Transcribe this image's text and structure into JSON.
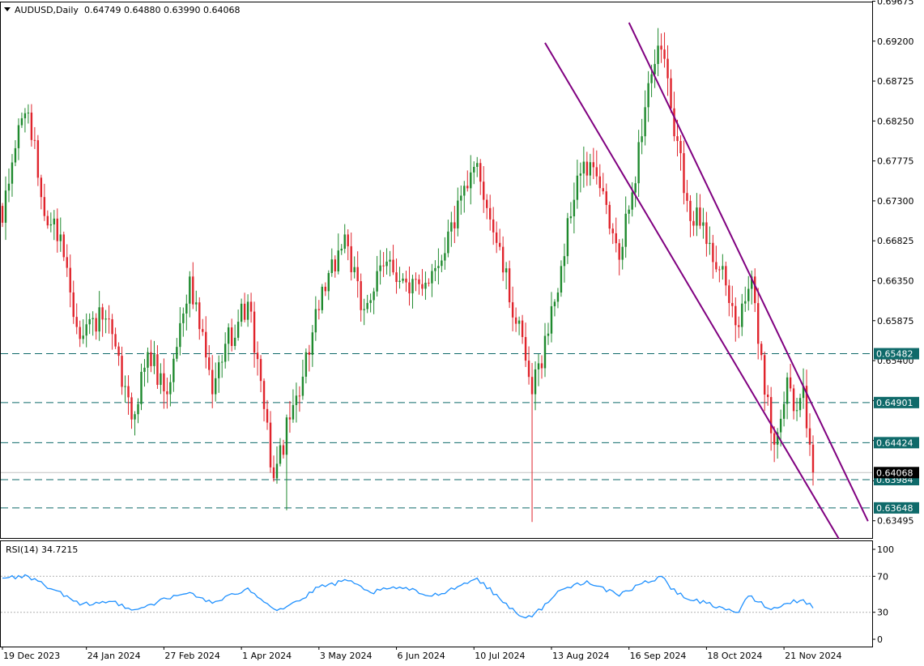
{
  "header": {
    "symbol": "AUDUSD,Daily",
    "ohlc": "0.64749 0.64880 0.63990 0.64068"
  },
  "rsi_header": "RSI(14) 34.7215",
  "colors": {
    "bull": "#1f8a2e",
    "bear": "#e0242c",
    "channel": "#800080",
    "level": "#0f6a6a",
    "rsi": "#1e90ff",
    "current_price_bg": "#000000"
  },
  "chart_data": [
    {
      "type": "candlestick",
      "symbol": "AUDUSD",
      "timeframe": "Daily",
      "y_ticks": [
        "0.69675",
        "0.69200",
        "0.68725",
        "0.68250",
        "0.67775",
        "0.67300",
        "0.66825",
        "0.66350",
        "0.65875",
        "0.65400",
        "0.64925",
        "0.64450",
        "0.63970",
        "0.63495"
      ],
      "x_ticks": [
        "19 Dec 2023",
        "24 Jan 2024",
        "27 Feb 2024",
        "1 Apr 2024",
        "3 May 2024",
        "6 Jun 2024",
        "10 Jul 2024",
        "13 Aug 2024",
        "16 Sep 2024",
        "18 Oct 2024",
        "21 Nov 2024"
      ],
      "ylim": [
        0.6329,
        0.6967
      ],
      "current_price": "0.64068",
      "levels": [
        "0.65482",
        "0.64901",
        "0.64424",
        "0.63984",
        "0.63648"
      ],
      "channel": {
        "upper": [
          {
            "date": "16 Sep 2024",
            "value": 0.6942
          },
          {
            "date": "29 Dec 2024",
            "value": 0.6349
          }
        ],
        "lower": [
          {
            "date": "9 Aug 2024",
            "value": 0.6918
          },
          {
            "date": "16 Dec 2024",
            "value": 0.6328
          }
        ]
      },
      "anchors": [
        {
          "date": "19 Dec 2023",
          "value": 0.6704
        },
        {
          "date": "26 Dec 2023",
          "value": 0.682
        },
        {
          "date": "29 Dec 2023",
          "value": 0.6835
        },
        {
          "date": "5 Jan 2024",
          "value": 0.6712
        },
        {
          "date": "12 Jan 2024",
          "value": 0.669
        },
        {
          "date": "19 Jan 2024",
          "value": 0.658
        },
        {
          "date": "1 Feb 2024",
          "value": 0.659
        },
        {
          "date": "13 Feb 2024",
          "value": 0.647
        },
        {
          "date": "20 Feb 2024",
          "value": 0.655
        },
        {
          "date": "28 Feb 2024",
          "value": 0.65
        },
        {
          "date": "8 Mar 2024",
          "value": 0.664
        },
        {
          "date": "19 Mar 2024",
          "value": 0.65
        },
        {
          "date": "25 Mar 2024",
          "value": 0.656
        },
        {
          "date": "3 Apr 2024",
          "value": 0.661
        },
        {
          "date": "15 Apr 2024",
          "value": 0.64
        },
        {
          "date": "22 Apr 2024",
          "value": 0.647
        },
        {
          "date": "3 May 2024",
          "value": 0.66
        },
        {
          "date": "15 May 2024",
          "value": 0.669
        },
        {
          "date": "22 May 2024",
          "value": 0.66
        },
        {
          "date": "4 Jun 2024",
          "value": 0.666
        },
        {
          "date": "12 Jun 2024",
          "value": 0.662
        },
        {
          "date": "24 Jun 2024",
          "value": 0.665
        },
        {
          "date": "8 Jul 2024",
          "value": 0.6745
        },
        {
          "date": "11 Jul 2024",
          "value": 0.6775
        },
        {
          "date": "19 Jul 2024",
          "value": 0.668
        },
        {
          "date": "1 Aug 2024",
          "value": 0.654
        },
        {
          "date": "5 Aug 2024",
          "value": 0.65
        },
        {
          "date": "14 Aug 2024",
          "value": 0.661
        },
        {
          "date": "23 Aug 2024",
          "value": 0.676
        },
        {
          "date": "30 Aug 2024",
          "value": 0.677
        },
        {
          "date": "11 Sep 2024",
          "value": 0.666
        },
        {
          "date": "17 Sep 2024",
          "value": 0.674
        },
        {
          "date": "24 Sep 2024",
          "value": 0.687
        },
        {
          "date": "30 Sep 2024",
          "value": 0.691
        },
        {
          "date": "3 Oct 2024",
          "value": 0.684
        },
        {
          "date": "10 Oct 2024",
          "value": 0.673
        },
        {
          "date": "21 Oct 2024",
          "value": 0.668
        },
        {
          "date": "1 Nov 2024",
          "value": 0.658
        },
        {
          "date": "7 Nov 2024",
          "value": 0.664
        },
        {
          "date": "11 Nov 2024",
          "value": 0.656
        },
        {
          "date": "18 Nov 2024",
          "value": 0.644
        },
        {
          "date": "22 Nov 2024",
          "value": 0.652
        },
        {
          "date": "26 Nov 2024",
          "value": 0.648
        },
        {
          "date": "29 Nov 2024",
          "value": 0.651
        },
        {
          "date": "3 Dec 2024",
          "value": 0.644
        },
        {
          "date": "4 Dec 2024",
          "value": 0.6407
        }
      ],
      "spike_lows": [
        {
          "date": "19 Apr 2024",
          "value": 0.6362
        },
        {
          "date": "5 Aug 2024",
          "value": 0.6348
        }
      ]
    },
    {
      "type": "line",
      "indicator": "RSI",
      "period": 14,
      "last_value": 34.7215,
      "y_ticks": [
        "100",
        "70",
        "30",
        "0"
      ],
      "ylim": [
        0,
        100
      ],
      "levels": [
        70,
        30
      ],
      "anchors": [
        {
          "date": "19 Dec 2023",
          "value": 68
        },
        {
          "date": "29 Dec 2023",
          "value": 70
        },
        {
          "date": "10 Jan 2024",
          "value": 55
        },
        {
          "date": "22 Jan 2024",
          "value": 38
        },
        {
          "date": "5 Feb 2024",
          "value": 42
        },
        {
          "date": "14 Feb 2024",
          "value": 33
        },
        {
          "date": "28 Feb 2024",
          "value": 45
        },
        {
          "date": "8 Mar 2024",
          "value": 52
        },
        {
          "date": "19 Mar 2024",
          "value": 40
        },
        {
          "date": "28 Mar 2024",
          "value": 50
        },
        {
          "date": "3 Apr 2024",
          "value": 57
        },
        {
          "date": "16 Apr 2024",
          "value": 32
        },
        {
          "date": "26 Apr 2024",
          "value": 45
        },
        {
          "date": "3 May 2024",
          "value": 58
        },
        {
          "date": "16 May 2024",
          "value": 65
        },
        {
          "date": "27 May 2024",
          "value": 52
        },
        {
          "date": "7 Jun 2024",
          "value": 58
        },
        {
          "date": "21 Jun 2024",
          "value": 48
        },
        {
          "date": "4 Jul 2024",
          "value": 60
        },
        {
          "date": "11 Jul 2024",
          "value": 68
        },
        {
          "date": "22 Jul 2024",
          "value": 45
        },
        {
          "date": "31 Jul 2024",
          "value": 25
        },
        {
          "date": "5 Aug 2024",
          "value": 25
        },
        {
          "date": "16 Aug 2024",
          "value": 55
        },
        {
          "date": "28 Aug 2024",
          "value": 65
        },
        {
          "date": "11 Sep 2024",
          "value": 48
        },
        {
          "date": "20 Sep 2024",
          "value": 62
        },
        {
          "date": "30 Sep 2024",
          "value": 70
        },
        {
          "date": "7 Oct 2024",
          "value": 50
        },
        {
          "date": "18 Oct 2024",
          "value": 40
        },
        {
          "date": "1 Nov 2024",
          "value": 30
        },
        {
          "date": "6 Nov 2024",
          "value": 48
        },
        {
          "date": "15 Nov 2024",
          "value": 33
        },
        {
          "date": "22 Nov 2024",
          "value": 40
        },
        {
          "date": "29 Nov 2024",
          "value": 44
        },
        {
          "date": "4 Dec 2024",
          "value": 34.72
        }
      ]
    }
  ]
}
